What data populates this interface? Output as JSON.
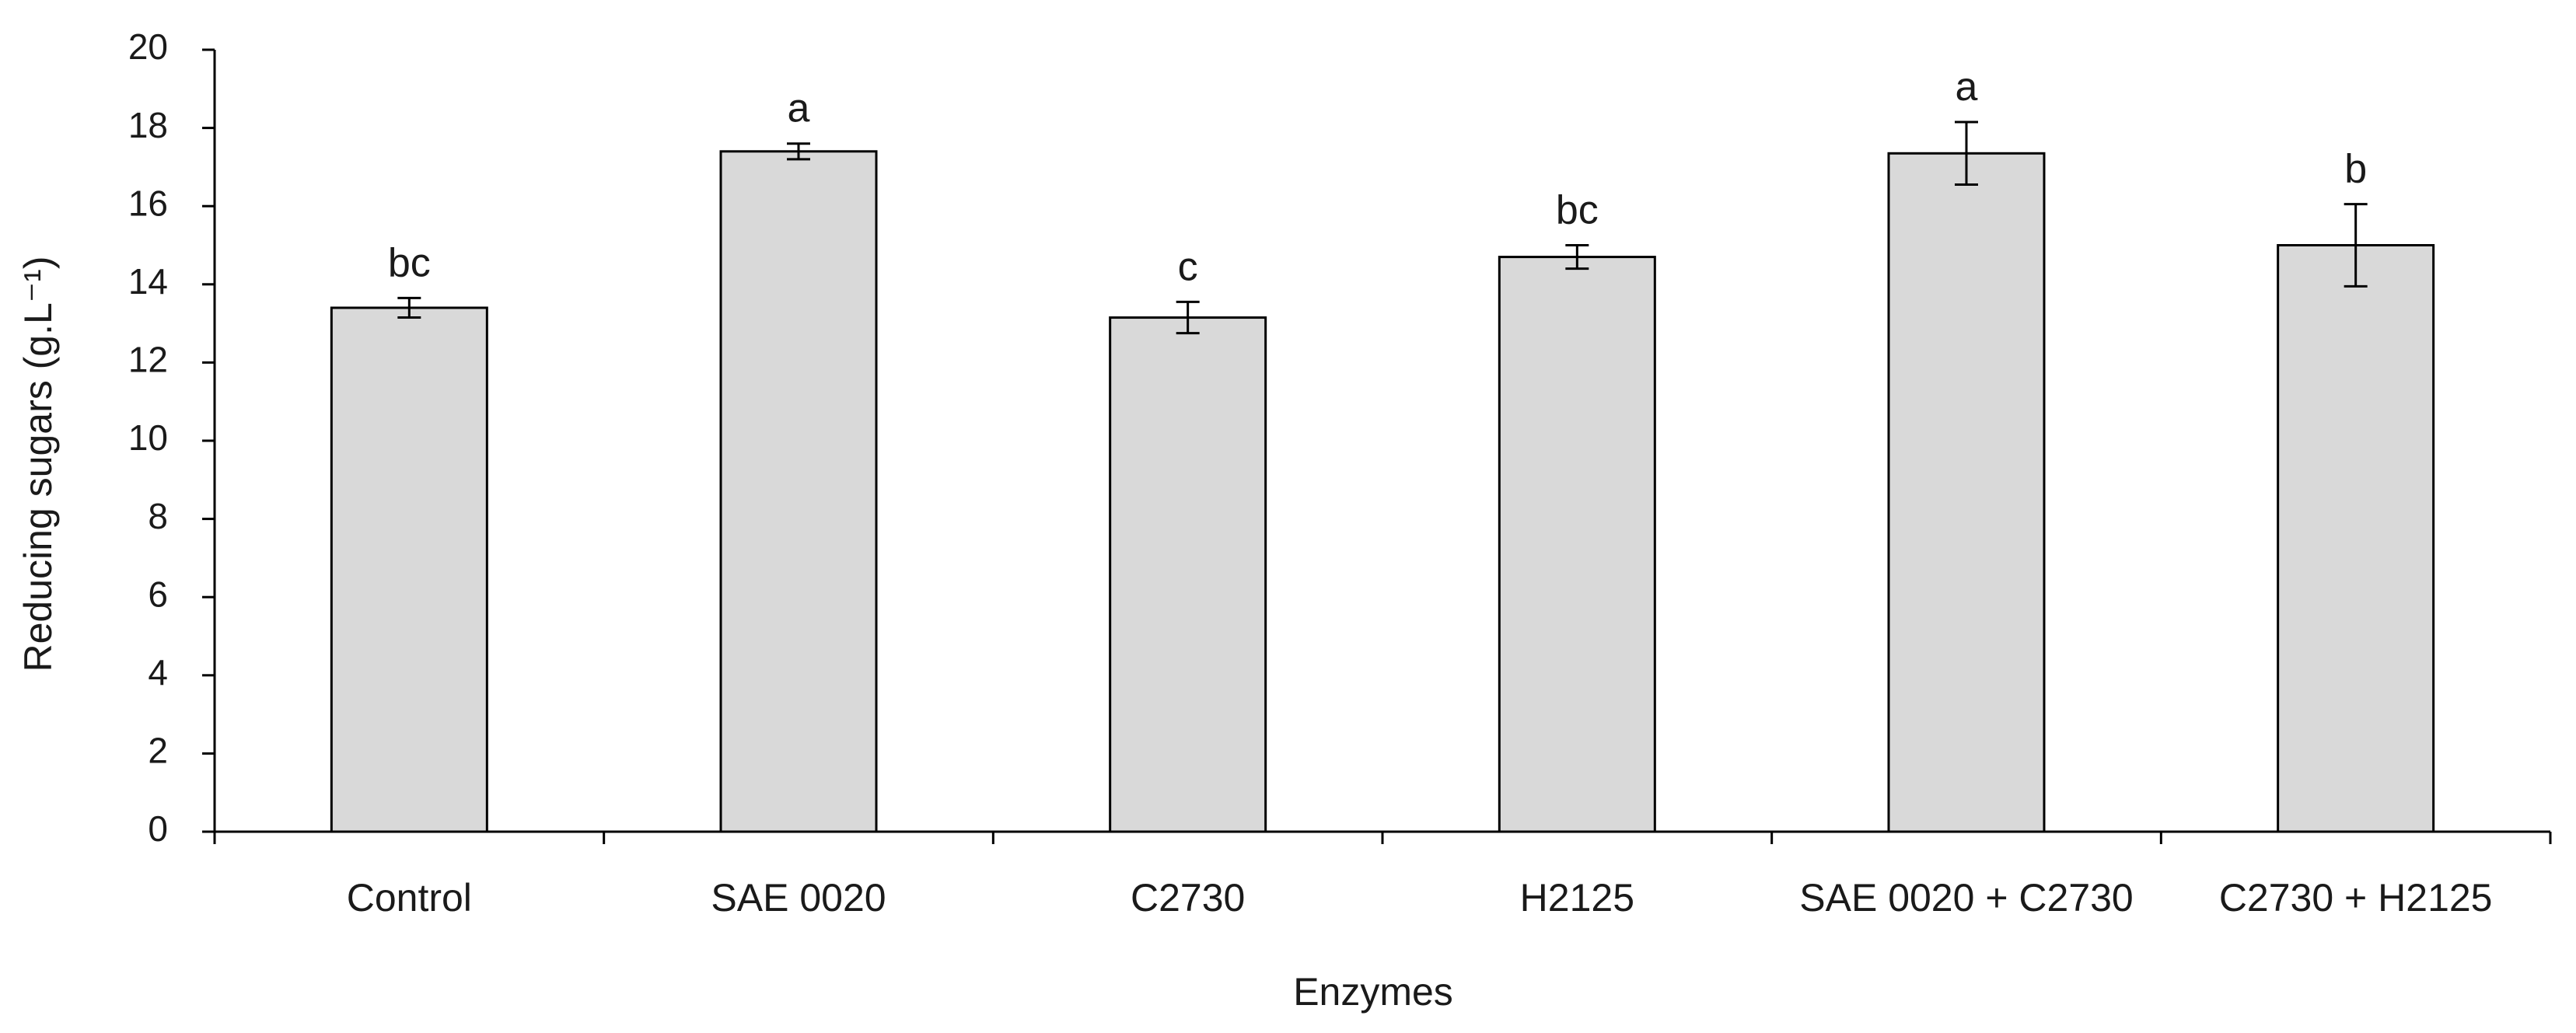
{
  "chart_data": {
    "type": "bar",
    "title": "",
    "xlabel": "Enzymes",
    "ylabel": "Reducing sugars (g.L⁻¹)",
    "ylim": [
      0,
      20
    ],
    "yticks": [
      0,
      2,
      4,
      6,
      8,
      10,
      12,
      14,
      16,
      18,
      20
    ],
    "grid": false,
    "legend": "none",
    "categories": [
      "Control",
      "SAE 0020",
      "C2730",
      "H2125",
      "SAE 0020 + C2730",
      "C2730 + H2125"
    ],
    "values": [
      13.4,
      17.4,
      13.15,
      14.7,
      17.35,
      15.0
    ],
    "errors": [
      0.25,
      0.2,
      0.4,
      0.3,
      0.8,
      1.05
    ],
    "significance_labels": [
      "bc",
      "a",
      "c",
      "bc",
      "a",
      "b"
    ],
    "bar_color": "#d9d9d9",
    "edge_color": "#000000"
  }
}
